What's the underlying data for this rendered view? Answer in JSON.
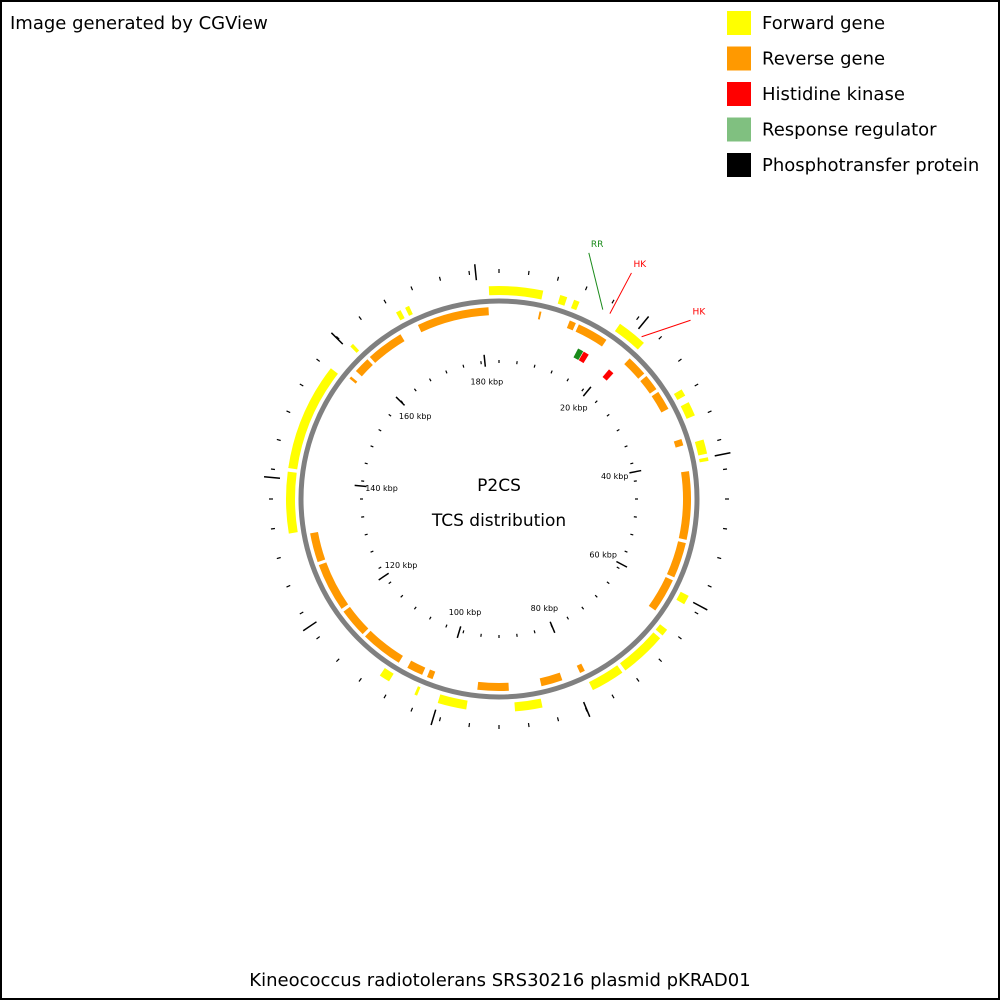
{
  "header": {
    "credit": "Image generated by CGView"
  },
  "legend": [
    {
      "label": "Forward gene",
      "color": "#ffff00"
    },
    {
      "label": "Reverse gene",
      "color": "#ff9900"
    },
    {
      "label": "Histidine kinase",
      "color": "#ff0000"
    },
    {
      "label": "Response regulator",
      "color": "#80c080"
    },
    {
      "label": "Phosphotransfer protein",
      "color": "#000000"
    }
  ],
  "map": {
    "center_title": "P2CS",
    "center_subtitle": "TCS distribution",
    "caption": "Kineococcus radiotolerans SRS30216 plasmid pKRAD01",
    "xlim": [
      0,
      183
    ],
    "xticks": [
      {
        "value": 20,
        "label": "20 kbp"
      },
      {
        "value": 40,
        "label": "40 kbp"
      },
      {
        "value": 60,
        "label": "60 kbp"
      },
      {
        "value": 80,
        "label": "80 kbp"
      },
      {
        "value": 100,
        "label": "100 kbp"
      },
      {
        "value": 120,
        "label": "120 kbp"
      },
      {
        "value": 140,
        "label": "140 kbp"
      },
      {
        "value": 160,
        "label": "160 kbp"
      },
      {
        "value": 180,
        "label": "180 kbp"
      }
    ],
    "forward_genes": [
      [
        0,
        6.1
      ],
      [
        8.5,
        9.5
      ],
      [
        10.5,
        11.3
      ],
      [
        17.6,
        21.8
      ],
      [
        30,
        31
      ],
      [
        32,
        34
      ],
      [
        37.5,
        39.5
      ],
      [
        40,
        40.5
      ],
      [
        59.5,
        60.8
      ],
      [
        65,
        66
      ],
      [
        66.5,
        73
      ],
      [
        73.5,
        78.2
      ],
      [
        85.5,
        89.3
      ],
      [
        96,
        100
      ],
      [
        103,
        103.4
      ],
      [
        107.3,
        108.8
      ],
      [
        132.5,
        141
      ],
      [
        141.5,
        156.5
      ],
      [
        160.5,
        161
      ],
      [
        168.3,
        169
      ],
      [
        169.7,
        170.3
      ],
      [
        181.6,
        183
      ]
    ],
    "reverse_genes": [
      [
        6.2,
        6.5
      ],
      [
        11,
        12
      ],
      [
        12.5,
        17.3
      ],
      [
        21.8,
        25
      ],
      [
        25.5,
        28
      ],
      [
        28.5,
        31.5
      ],
      [
        36.5,
        37.5
      ],
      [
        41.5,
        52
      ],
      [
        52.5,
        58
      ],
      [
        58.5,
        63.8
      ],
      [
        78,
        78.8
      ],
      [
        81.7,
        85
      ],
      [
        90,
        94.8
      ],
      [
        101.8,
        102.7
      ],
      [
        103.5,
        106
      ],
      [
        107.5,
        114
      ],
      [
        114.5,
        119
      ],
      [
        119.5,
        127
      ],
      [
        127.5,
        132
      ],
      [
        157,
        157.4
      ],
      [
        158.5,
        161
      ],
      [
        161.5,
        167.3
      ],
      [
        170.3,
        181.4
      ]
    ],
    "tcs": [
      {
        "label": "RR",
        "position": 14.6,
        "color": "#1a8a1a"
      },
      {
        "label": "HK",
        "position": 15.7,
        "color": "#ff0000"
      },
      {
        "label": "HK",
        "position": 21.0,
        "color": "#ff0000"
      }
    ]
  }
}
